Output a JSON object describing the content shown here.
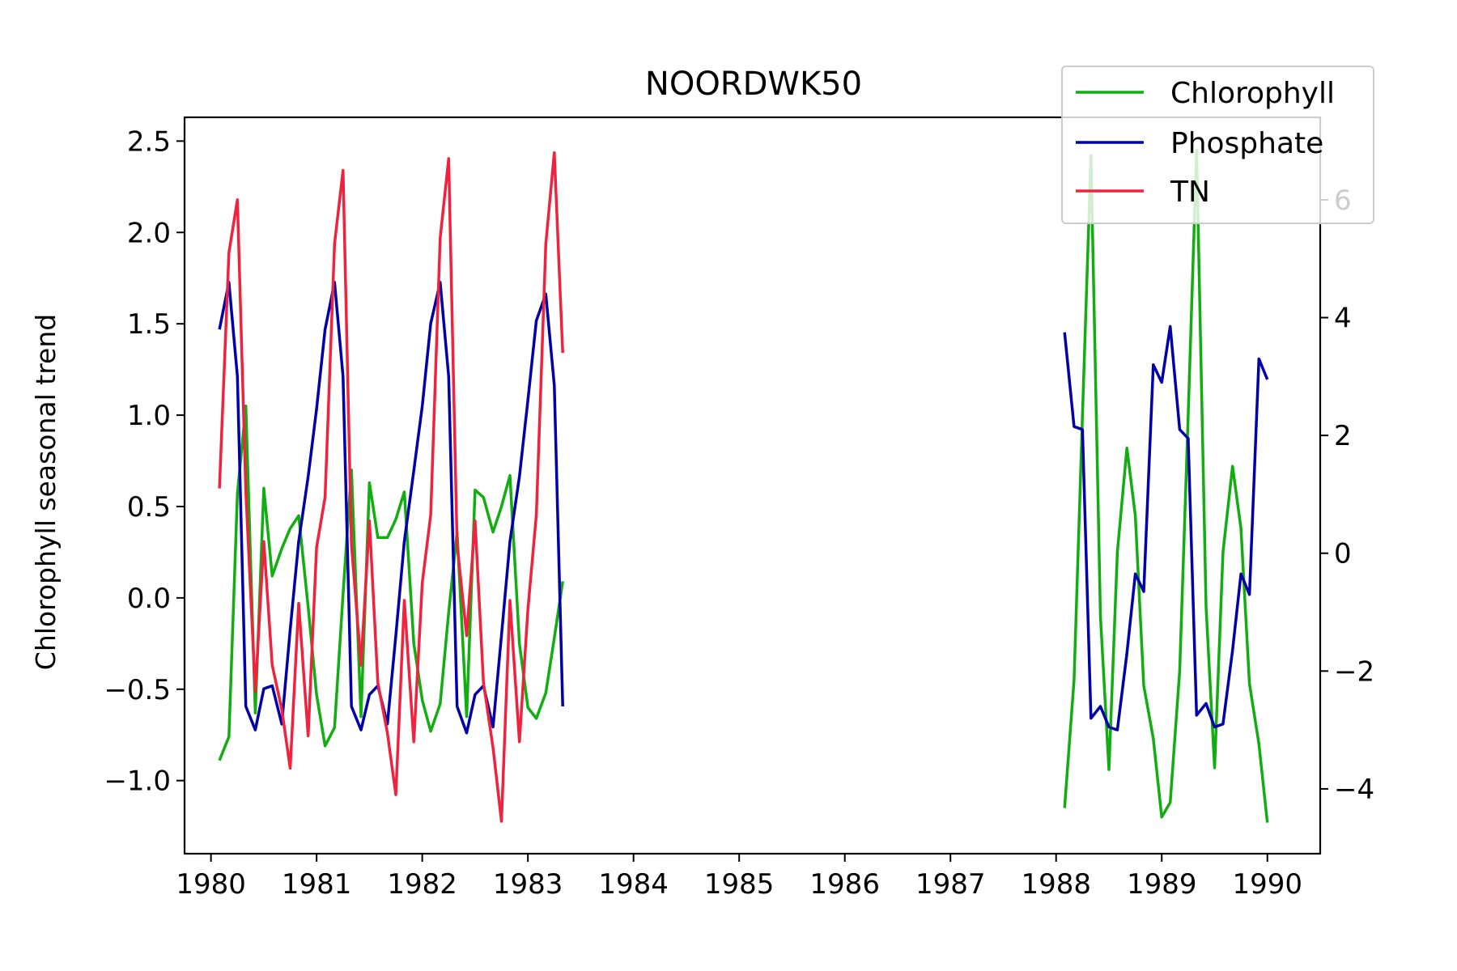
{
  "chart_data": {
    "type": "line",
    "title": "NOORDWK50",
    "xlabel": "",
    "ylabel": "Chlorophyll seasonal trend",
    "y2label": "",
    "xlim": [
      1979.75,
      1990.5
    ],
    "ylim": [
      -1.4,
      2.63
    ],
    "y2lim": [
      -5.1,
      7.4
    ],
    "xticks": [
      1980,
      1981,
      1982,
      1983,
      1984,
      1985,
      1986,
      1987,
      1988,
      1989,
      1990
    ],
    "xtick_labels": [
      "1980",
      "1981",
      "1982",
      "1983",
      "1984",
      "1985",
      "1986",
      "1987",
      "1988",
      "1989",
      "1990"
    ],
    "yticks": [
      -1.0,
      -0.5,
      0.0,
      0.5,
      1.0,
      1.5,
      2.0,
      2.5
    ],
    "ytick_labels": [
      "−1.0",
      "−0.5",
      "0.0",
      "0.5",
      "1.0",
      "1.5",
      "2.0",
      "2.5"
    ],
    "y2ticks": [
      -4,
      -2,
      0,
      2,
      4,
      6
    ],
    "y2tick_labels": [
      "−4",
      "−2",
      "0",
      "2",
      "4",
      "6"
    ],
    "legend_position": "top-right",
    "grid": false,
    "series": [
      {
        "name": "Chlorophyll",
        "color": "#11ad11",
        "axis": "left",
        "segments": [
          {
            "x": [
              1980.08,
              1980.17,
              1980.25,
              1980.33,
              1980.42,
              1980.5,
              1980.58,
              1980.67,
              1980.75,
              1980.83,
              1980.92,
              1981.0,
              1981.08,
              1981.17,
              1981.25,
              1981.33,
              1981.42,
              1981.5,
              1981.58,
              1981.67,
              1981.75,
              1981.83,
              1981.92,
              1982.0,
              1982.08,
              1982.17,
              1982.25,
              1982.33,
              1982.42,
              1982.5,
              1982.58,
              1982.67,
              1982.75,
              1982.83,
              1982.92,
              1983.0,
              1983.08,
              1983.17,
              1983.25,
              1983.33
            ],
            "y": [
              -0.89,
              -0.76,
              0.57,
              1.05,
              -0.63,
              0.6,
              0.12,
              0.27,
              0.38,
              0.45,
              -0.05,
              -0.53,
              -0.81,
              -0.71,
              0.02,
              0.7,
              -0.65,
              0.63,
              0.33,
              0.33,
              0.43,
              0.58,
              -0.25,
              -0.56,
              -0.73,
              -0.58,
              -0.08,
              0.36,
              -0.65,
              0.59,
              0.55,
              0.36,
              0.5,
              0.67,
              -0.25,
              -0.6,
              -0.66,
              -0.52,
              -0.22,
              0.09
            ]
          },
          {
            "x": [
              1988.08,
              1988.17,
              1988.25,
              1988.33,
              1988.42,
              1988.5,
              1988.58,
              1988.67,
              1988.75,
              1988.83,
              1988.92,
              1989.0,
              1989.08,
              1989.17,
              1989.25,
              1989.33,
              1989.42,
              1989.5,
              1989.58,
              1989.67,
              1989.75,
              1989.83,
              1989.92,
              1990.0
            ],
            "y": [
              -1.15,
              -0.45,
              1.0,
              2.42,
              -0.1,
              -0.94,
              0.25,
              0.82,
              0.45,
              -0.48,
              -0.77,
              -1.2,
              -1.12,
              -0.4,
              1.0,
              2.45,
              -0.05,
              -0.93,
              0.25,
              0.72,
              0.38,
              -0.47,
              -0.8,
              -1.23
            ]
          }
        ]
      },
      {
        "name": "Phosphate",
        "color": "#0000aa",
        "axis": "right",
        "segments": [
          {
            "x": [
              1980.08,
              1980.17,
              1980.25,
              1980.33,
              1980.42,
              1980.5,
              1980.58,
              1980.67,
              1980.75,
              1980.83,
              1980.92,
              1981.0,
              1981.08,
              1981.17,
              1981.25,
              1981.33,
              1981.42,
              1981.5,
              1981.58,
              1981.67,
              1981.75,
              1981.83,
              1981.92,
              1982.0,
              1982.08,
              1982.17,
              1982.25,
              1982.33,
              1982.42,
              1982.5,
              1982.58,
              1982.67,
              1982.75,
              1982.83,
              1982.92,
              1983.0,
              1983.08,
              1983.17,
              1983.25,
              1983.33
            ],
            "y": [
              3.8,
              4.6,
              3.0,
              -2.6,
              -3.0,
              -2.3,
              -2.25,
              -2.9,
              -1.3,
              0.2,
              1.3,
              2.45,
              3.8,
              4.6,
              3.0,
              -2.6,
              -3.0,
              -2.4,
              -2.25,
              -2.9,
              -1.4,
              0.2,
              1.4,
              2.5,
              3.9,
              4.6,
              3.0,
              -2.6,
              -3.05,
              -2.4,
              -2.25,
              -2.95,
              -1.4,
              0.2,
              1.3,
              2.6,
              3.95,
              4.4,
              2.85,
              -2.6
            ]
          },
          {
            "x": [
              1988.08,
              1988.17,
              1988.25,
              1988.33,
              1988.42,
              1988.5,
              1988.58,
              1988.67,
              1988.75,
              1988.83,
              1988.92,
              1989.0,
              1989.08,
              1989.17,
              1989.25,
              1989.33,
              1989.42,
              1989.5,
              1989.58,
              1989.67,
              1989.75,
              1989.83,
              1989.92,
              1990.0
            ],
            "y": [
              3.75,
              2.15,
              2.1,
              -2.8,
              -2.6,
              -2.95,
              -3.0,
              -1.7,
              -0.35,
              -0.65,
              3.2,
              2.9,
              3.85,
              2.1,
              1.95,
              -2.75,
              -2.55,
              -2.95,
              -2.9,
              -1.65,
              -0.35,
              -0.7,
              3.3,
              2.95
            ]
          }
        ]
      },
      {
        "name": "TN",
        "color": "#f0233f",
        "axis": "right",
        "segments": [
          {
            "x": [
              1980.08,
              1980.17,
              1980.25,
              1980.33,
              1980.42,
              1980.5,
              1980.58,
              1980.67,
              1980.75,
              1980.83,
              1980.92,
              1981.0,
              1981.08,
              1981.17,
              1981.25,
              1981.33,
              1981.42,
              1981.5,
              1981.58,
              1981.67,
              1981.75,
              1981.83,
              1981.92,
              1982.0,
              1982.08,
              1982.17,
              1982.25,
              1982.33,
              1982.42,
              1982.5,
              1982.58,
              1982.67,
              1982.75,
              1982.83,
              1982.92,
              1983.0,
              1983.08,
              1983.17,
              1983.25,
              1983.33
            ],
            "y": [
              1.1,
              5.1,
              6.0,
              1.05,
              -2.35,
              0.2,
              -1.9,
              -2.65,
              -3.65,
              -0.85,
              -3.1,
              0.1,
              0.95,
              5.25,
              6.5,
              0.15,
              -1.9,
              0.55,
              -2.2,
              -3.05,
              -4.1,
              -0.8,
              -3.2,
              -0.5,
              0.65,
              5.35,
              6.7,
              0.15,
              -1.4,
              0.55,
              -2.2,
              -3.3,
              -4.55,
              -0.8,
              -3.2,
              -0.95,
              0.65,
              5.25,
              6.8,
              3.4
            ]
          }
        ]
      }
    ]
  }
}
